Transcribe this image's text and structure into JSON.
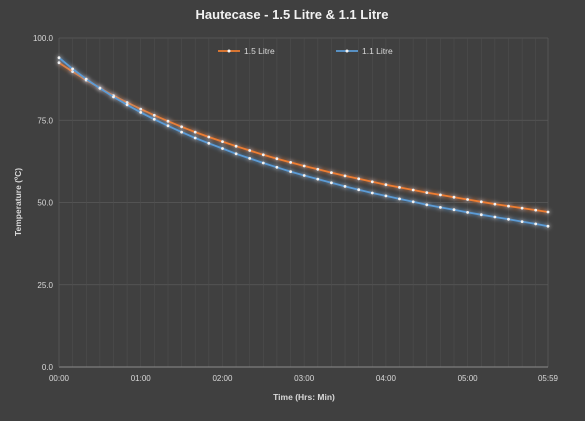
{
  "chart_data": {
    "type": "line",
    "title": "Hautecase - 1.5 Litre & 1.1 Litre",
    "xlabel": "Time (Hrs: Min)",
    "ylabel": "Temperature (ºC)",
    "ylim": [
      0,
      100
    ],
    "xlim": [
      "00:00",
      "05:59"
    ],
    "y_ticks": [
      "0.0",
      "25.0",
      "50.0",
      "75.0",
      "100.0"
    ],
    "x_ticks": [
      "00:00",
      "01:00",
      "02:00",
      "03:00",
      "04:00",
      "05:00",
      "05:59"
    ],
    "grid": true,
    "legend_position": "top",
    "x": [
      "00:00",
      "00:10",
      "00:20",
      "00:30",
      "00:40",
      "00:50",
      "01:00",
      "01:10",
      "01:20",
      "01:30",
      "01:40",
      "01:50",
      "02:00",
      "02:10",
      "02:20",
      "02:30",
      "02:40",
      "02:50",
      "03:00",
      "03:10",
      "03:20",
      "03:30",
      "03:40",
      "03:50",
      "04:00",
      "04:10",
      "04:20",
      "04:30",
      "04:40",
      "04:50",
      "05:00",
      "05:10",
      "05:20",
      "05:30",
      "05:40",
      "05:50",
      "05:59"
    ],
    "series": [
      {
        "name": "1.5 Litre",
        "color": "#ed7d31",
        "values": [
          92.5,
          89.8,
          87.2,
          84.8,
          82.5,
          80.4,
          78.4,
          76.5,
          74.7,
          73.0,
          71.4,
          69.9,
          68.5,
          67.1,
          65.8,
          64.5,
          63.3,
          62.2,
          61.1,
          60.1,
          59.1,
          58.1,
          57.2,
          56.3,
          55.4,
          54.6,
          53.8,
          53.0,
          52.3,
          51.6,
          50.9,
          50.2,
          49.5,
          48.9,
          48.3,
          47.7,
          47.1
        ]
      },
      {
        "name": "1.1 Litre",
        "color": "#5b9bd5",
        "values": [
          94.0,
          90.6,
          87.5,
          84.7,
          82.1,
          79.7,
          77.4,
          75.3,
          73.3,
          71.4,
          69.6,
          68.0,
          66.4,
          64.8,
          63.4,
          62.0,
          60.7,
          59.4,
          58.2,
          57.1,
          56.0,
          54.9,
          53.9,
          52.9,
          52.0,
          51.1,
          50.2,
          49.3,
          48.5,
          47.8,
          47.0,
          46.3,
          45.6,
          44.9,
          44.2,
          43.5,
          42.8
        ]
      }
    ]
  }
}
